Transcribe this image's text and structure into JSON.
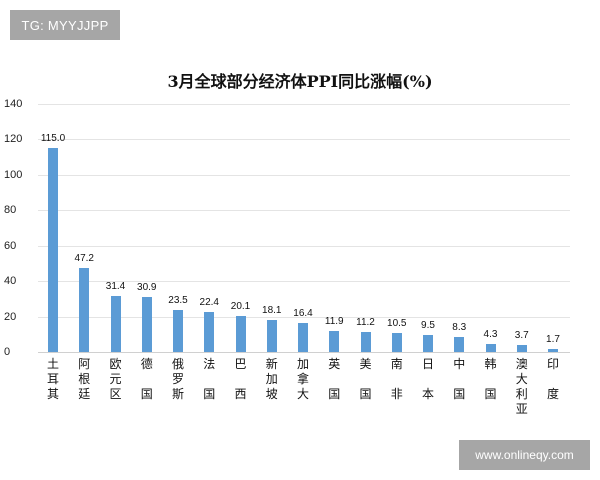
{
  "watermarks": {
    "top_left": "TG: MYYJJPP",
    "bottom_right": "www.onlineqy.com"
  },
  "colors": {
    "bar": "#5b9bd5",
    "watermark_bg": "#a6a6a6"
  },
  "chart_data": {
    "type": "bar",
    "title": "3月全球部分经济体PPI同比涨幅(%)",
    "xlabel": "",
    "ylabel": "",
    "ylim": [
      0,
      140
    ],
    "yticks": [
      0,
      20,
      40,
      60,
      80,
      100,
      120,
      140
    ],
    "grid": true,
    "legend": null,
    "categories": [
      "土耳其",
      "阿根廷",
      "欧元区",
      "德国",
      "俄罗斯",
      "法国",
      "巴西",
      "新加坡",
      "加拿大",
      "英国",
      "美国",
      "南非",
      "日本",
      "中国",
      "韩国",
      "澳大利亚",
      "印度"
    ],
    "category_label_lines": [
      [
        "土",
        "耳",
        "其"
      ],
      [
        "阿",
        "根",
        "廷"
      ],
      [
        "欧",
        "元",
        "区"
      ],
      [
        "德",
        "",
        "国"
      ],
      [
        "俄",
        "罗",
        "斯"
      ],
      [
        "法",
        "",
        "国"
      ],
      [
        "巴",
        "",
        "西"
      ],
      [
        "新",
        "加",
        "坡"
      ],
      [
        "加",
        "拿",
        "大"
      ],
      [
        "英",
        "",
        "国"
      ],
      [
        "美",
        "",
        "国"
      ],
      [
        "南",
        "",
        "非"
      ],
      [
        "日",
        "",
        "本"
      ],
      [
        "中",
        "",
        "国"
      ],
      [
        "韩",
        "",
        "国"
      ],
      [
        "澳",
        "大",
        "利",
        "亚"
      ],
      [
        "印",
        "",
        "度"
      ]
    ],
    "values": [
      115.0,
      47.2,
      31.4,
      30.9,
      23.5,
      22.4,
      20.1,
      18.1,
      16.4,
      11.9,
      11.2,
      10.5,
      9.5,
      8.3,
      4.3,
      3.7,
      1.7
    ],
    "value_labels": [
      "115.0",
      "47.2",
      "31.4",
      "30.9",
      "23.5",
      "22.4",
      "20.1",
      "18.1",
      "16.4",
      "11.9",
      "11.2",
      "10.5",
      "9.5",
      "8.3",
      "4.3",
      "3.7",
      "1.7"
    ]
  }
}
